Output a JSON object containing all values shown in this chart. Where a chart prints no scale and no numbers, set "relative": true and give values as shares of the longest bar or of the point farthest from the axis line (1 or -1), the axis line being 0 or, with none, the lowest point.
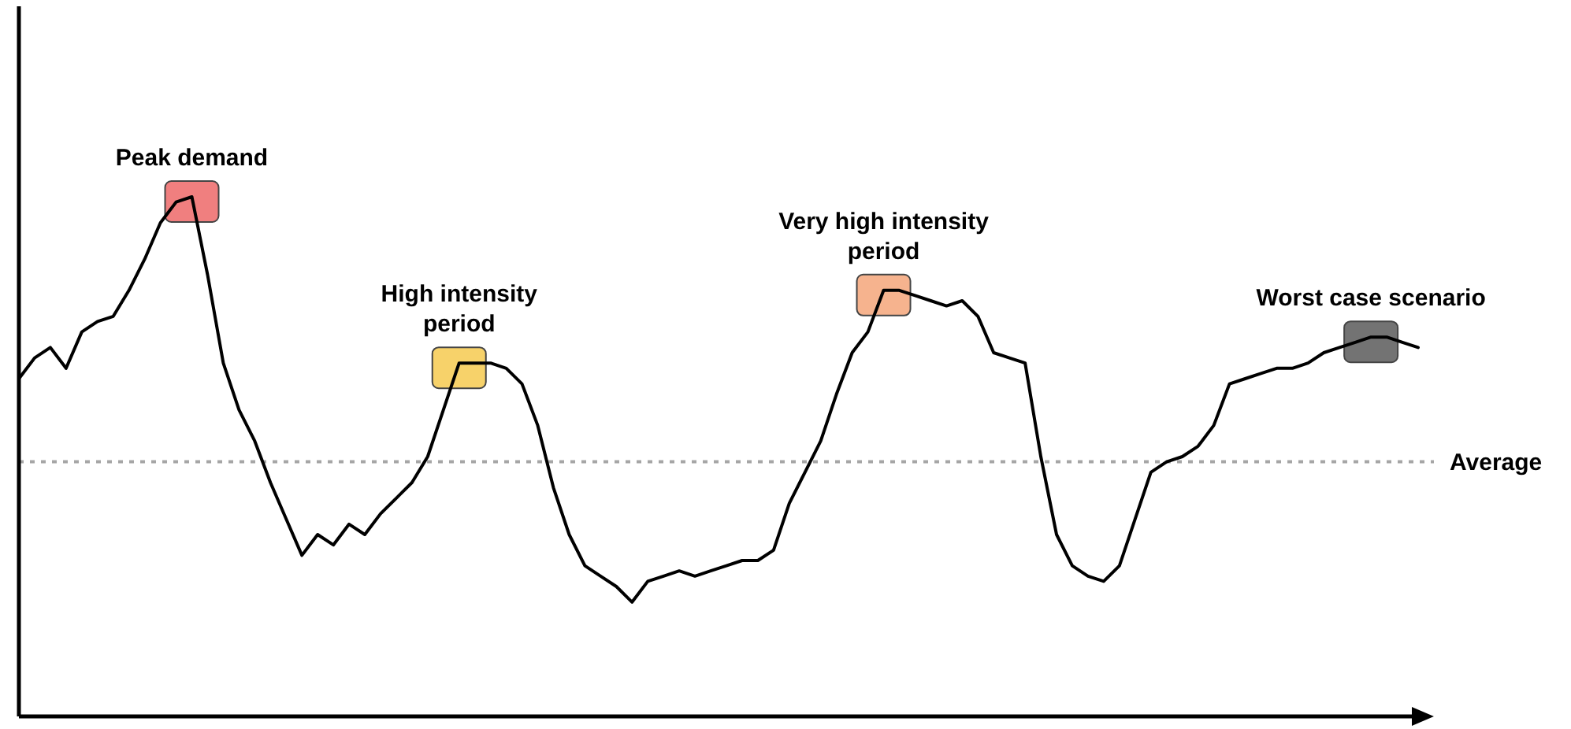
{
  "chart_data": {
    "type": "line",
    "relative": true,
    "categories": [
      null,
      null,
      null,
      null,
      null,
      null,
      null,
      null,
      null,
      null,
      null,
      null,
      null,
      null,
      null,
      null,
      null,
      null,
      null,
      null,
      null,
      null,
      null,
      null,
      null,
      null,
      null,
      null,
      null,
      null,
      null,
      null,
      null,
      null,
      null,
      null,
      null,
      null,
      null,
      null,
      null,
      null,
      null,
      null,
      null,
      null,
      null,
      null,
      null,
      null,
      null,
      null,
      null,
      null,
      null,
      null,
      null,
      null,
      null,
      null,
      null,
      null,
      null,
      null,
      null,
      null,
      null,
      null,
      null,
      null,
      null,
      null,
      null,
      null,
      null,
      null,
      null,
      null,
      null,
      null,
      null,
      null,
      null,
      null,
      null,
      null,
      null,
      null,
      null,
      null
    ],
    "series": [
      {
        "color": "#000000",
        "values": [
          0.65,
          0.69,
          0.71,
          0.67,
          0.74,
          0.76,
          0.77,
          0.82,
          0.88,
          0.95,
          0.99,
          1.0,
          0.85,
          0.68,
          0.59,
          0.53,
          0.45,
          0.38,
          0.31,
          0.35,
          0.33,
          0.37,
          0.35,
          0.39,
          0.42,
          0.45,
          0.5,
          0.59,
          0.68,
          0.68,
          0.68,
          0.67,
          0.64,
          0.56,
          0.44,
          0.35,
          0.29,
          0.27,
          0.25,
          0.22,
          0.26,
          0.27,
          0.28,
          0.27,
          0.28,
          0.29,
          0.3,
          0.3,
          0.32,
          0.41,
          0.47,
          0.53,
          0.62,
          0.7,
          0.74,
          0.82,
          0.82,
          0.81,
          0.8,
          0.79,
          0.8,
          0.77,
          0.7,
          0.69,
          0.68,
          0.5,
          0.35,
          0.29,
          0.27,
          0.26,
          0.29,
          0.38,
          0.47,
          0.49,
          0.5,
          0.52,
          0.56,
          0.64,
          0.65,
          0.66,
          0.67,
          0.67,
          0.68,
          0.7,
          0.71,
          0.72,
          0.73,
          0.73,
          0.72,
          0.71
        ]
      }
    ],
    "annotations": [
      "Peak demand",
      "High intensity period",
      "Very high intensity period",
      "Worst case scenario"
    ],
    "ref_lines": [
      {
        "axis": "y",
        "value": 0.49,
        "label": "Average",
        "color": "#a6a6a6",
        "line_style": "dotted"
      }
    ]
  }
}
